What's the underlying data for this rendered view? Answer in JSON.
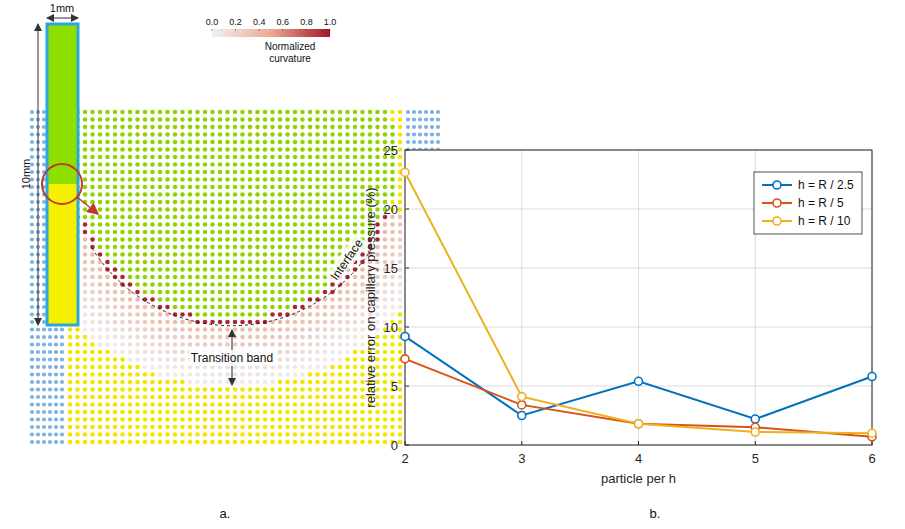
{
  "chart_data": [
    {
      "type": "diagram",
      "panel_label": "a.",
      "width_label": "1mm",
      "height_label": "10mm",
      "colorbar_title": "Normalized curvature",
      "colorbar_range": [
        0,
        1
      ],
      "colorbar_ticks": [
        {
          "value": 0,
          "label": "0.0"
        },
        0.2,
        0.4,
        0.6,
        0.8,
        {
          "value": 1,
          "label": "1.0"
        }
      ],
      "annotations": [
        "Interface",
        "Transition band"
      ]
    },
    {
      "type": "line",
      "panel_label": "b.",
      "x_label": "particle per h",
      "y_label": "relative error on capillary pressure (%)",
      "x": [
        2,
        3,
        4,
        5,
        6
      ],
      "xlim": [
        2,
        6
      ],
      "xticks": [
        2,
        3,
        4,
        5,
        6
      ],
      "ylim": [
        0,
        25
      ],
      "yticks": [
        0,
        5,
        10,
        15,
        20,
        25
      ],
      "grid": true,
      "legend": "upper right",
      "marker": "circle",
      "series": [
        {
          "name": "h = R / 2.5",
          "color": "#0072bd",
          "values": [
            9.2,
            2.5,
            5.4,
            2.2,
            5.8
          ]
        },
        {
          "name": "h = R / 5",
          "color": "#d95319",
          "values": [
            7.3,
            3.4,
            1.8,
            1.5,
            0.7
          ]
        },
        {
          "name": "h = R / 10",
          "color": "#edb120",
          "values": [
            23.1,
            4.1,
            1.8,
            1.1,
            1.0
          ]
        }
      ]
    }
  ]
}
